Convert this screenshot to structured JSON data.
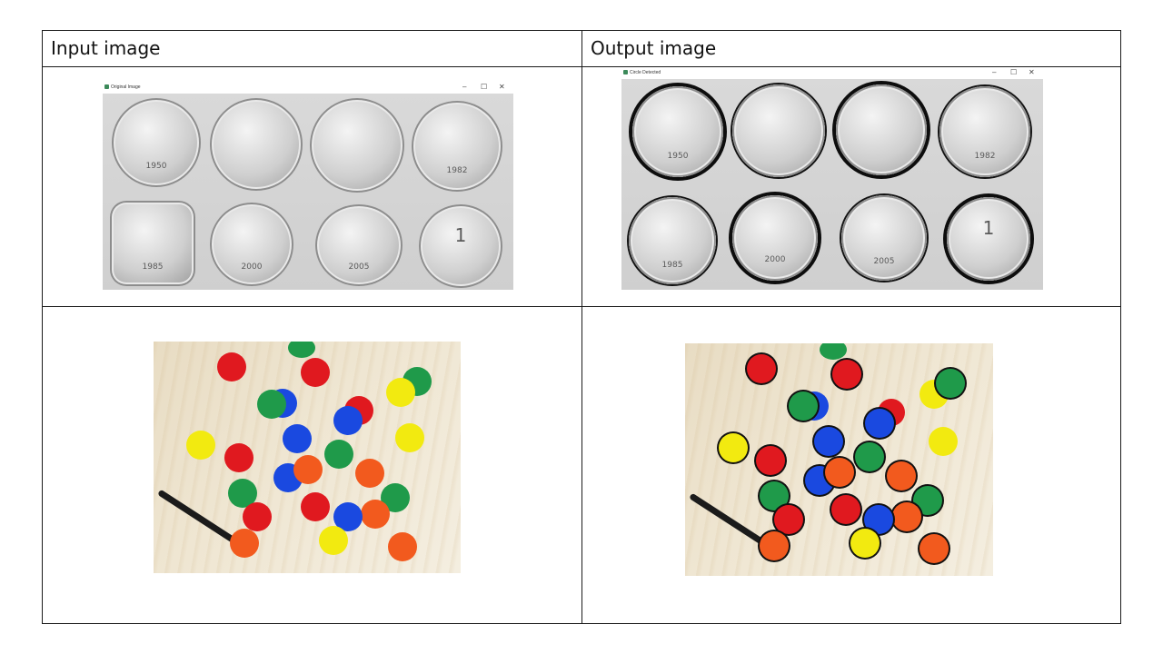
{
  "headers": {
    "input": "Input image",
    "output": "Output image"
  },
  "windows": {
    "original_title": "Original Image",
    "detected_title": "Circle Detected",
    "minimize": "–",
    "maximize": "☐",
    "close": "✕"
  },
  "coins": {
    "labels": [
      "1950",
      "",
      "",
      "1982",
      "1985",
      "2000",
      "2005",
      "1"
    ]
  },
  "colors": {
    "red": "#e0191f",
    "green": "#1f9a4a",
    "blue": "#1a49e0",
    "yellow": "#f2ea10",
    "orange": "#f25a1e",
    "pen": "#1b1b1b"
  },
  "icons": [
    "window-app-icon",
    "minimize-icon",
    "maximize-icon",
    "close-icon"
  ]
}
